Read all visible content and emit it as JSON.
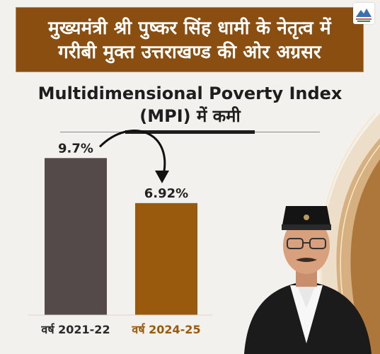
{
  "banner": {
    "line1": "मुख्यमंत्री श्री पुष्कर सिंह धामी के नेतृत्व में",
    "line2": "गरीबी मुक्त उत्तराखण्ड की ओर अग्रसर"
  },
  "colors": {
    "banner_bg": "#8a4f10",
    "bar_2021": "#544a4a",
    "bar_2024": "#9a5a0d",
    "label_2024": "#9a5a0d",
    "background": "#f3f1ee"
  },
  "chart_data": {
    "type": "bar",
    "title_line1": "Multidimensional Poverty Index",
    "title_line2": "(MPI) में कमी",
    "categories": [
      "वर्ष 2021-22",
      "वर्ष 2024-25"
    ],
    "values": [
      9.7,
      6.92
    ],
    "value_labels": [
      "9.7%",
      "6.92%"
    ],
    "ylim": [
      0,
      10.5
    ],
    "annotation": "curved arrow from 9.7% to 6.92%",
    "grid": false
  }
}
